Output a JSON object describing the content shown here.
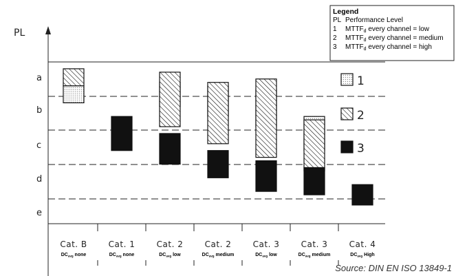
{
  "chart_data": {
    "type": "bar",
    "y_axis_label": "PL",
    "pl_levels": [
      "a",
      "b",
      "c",
      "d",
      "e"
    ],
    "categories": [
      {
        "name": "Cat. B",
        "dc_prefix": "DC",
        "dc_sub": "avg",
        "dc_level": "none"
      },
      {
        "name": "Cat. 1",
        "dc_prefix": "DC",
        "dc_sub": "avg",
        "dc_level": "none"
      },
      {
        "name": "Cat. 2",
        "dc_prefix": "DC",
        "dc_sub": "avg",
        "dc_level": "low"
      },
      {
        "name": "Cat. 2",
        "dc_prefix": "DC",
        "dc_sub": "avg",
        "dc_level": "medium"
      },
      {
        "name": "Cat. 3",
        "dc_prefix": "DC",
        "dc_sub": "avg",
        "dc_level": "low"
      },
      {
        "name": "Cat. 3",
        "dc_prefix": "DC",
        "dc_sub": "avg",
        "dc_level": "medium"
      },
      {
        "name": "Cat. 4",
        "dc_prefix": "DC",
        "dc_sub": "avg",
        "dc_level": "High"
      }
    ],
    "series": [
      {
        "key": "1",
        "ranges": [
          [
            0.7,
            1.2
          ],
          null,
          [
            0.6,
            1.3
          ],
          [
            0.7,
            1.6
          ],
          [
            0.8,
            1.9
          ],
          [
            1.6,
            2.6
          ],
          null
        ]
      },
      {
        "key": "2",
        "ranges": [
          [
            0.2,
            0.7
          ],
          null,
          [
            0.3,
            1.9
          ],
          [
            0.6,
            2.4
          ],
          [
            0.5,
            2.8
          ],
          [
            1.7,
            3.2
          ],
          null
        ]
      },
      {
        "key": "3",
        "ranges": [
          null,
          [
            1.6,
            2.6
          ],
          [
            2.1,
            3.0
          ],
          [
            2.6,
            3.4
          ],
          [
            2.9,
            3.8
          ],
          [
            3.1,
            3.9
          ],
          [
            3.6,
            4.2
          ]
        ]
      }
    ]
  },
  "key_labels": [
    "1",
    "2",
    "3"
  ],
  "legend": {
    "title": "Legend",
    "rows": [
      {
        "code": "PL",
        "text": "Performance Level"
      },
      {
        "code": "1",
        "prefix": "MTTF",
        "sub": "d",
        "text": " every channel = low"
      },
      {
        "code": "2",
        "prefix": "MTTF",
        "sub": "d",
        "text": " every channel = medium"
      },
      {
        "code": "3",
        "prefix": "MTTF",
        "sub": "d",
        "text": " every channel = high"
      }
    ]
  },
  "source": "Source: DIN EN ISO 13849-1"
}
